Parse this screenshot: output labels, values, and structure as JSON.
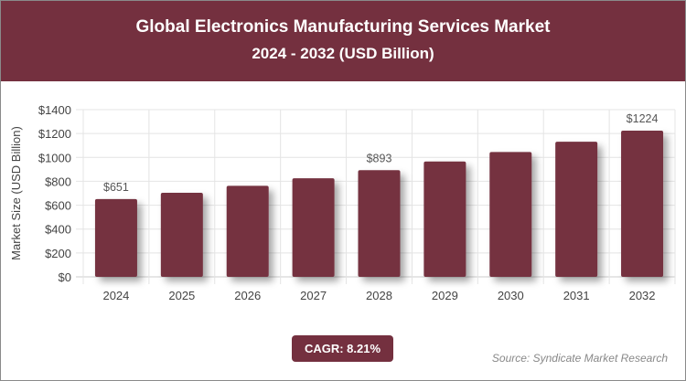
{
  "title": "Global Electronics Manufacturing Services Market",
  "subtitle": "2024 - 2032 (USD Billion)",
  "cagr_label": "CAGR: 8.21%",
  "source": "Source: Syndicate Market Research",
  "colors": {
    "bar": "#74303f",
    "banner": "#74303f"
  },
  "chart_data": {
    "type": "bar",
    "categories": [
      "2024",
      "2025",
      "2026",
      "2027",
      "2028",
      "2029",
      "2030",
      "2031",
      "2032"
    ],
    "values": [
      651,
      704,
      762,
      825,
      893,
      966,
      1045,
      1131,
      1224
    ],
    "data_labels": {
      "2024": "$651",
      "2028": "$893",
      "2032": "$1224"
    },
    "ylabel": "Market Size (USD Billion)",
    "xlabel": "",
    "ylim": [
      0,
      1400
    ],
    "yticks": [
      0,
      200,
      400,
      600,
      800,
      1000,
      1200,
      1400
    ],
    "ytick_labels": [
      "$0",
      "$200",
      "$400",
      "$600",
      "$800",
      "$1000",
      "$1200",
      "$1400"
    ],
    "grid": true
  }
}
